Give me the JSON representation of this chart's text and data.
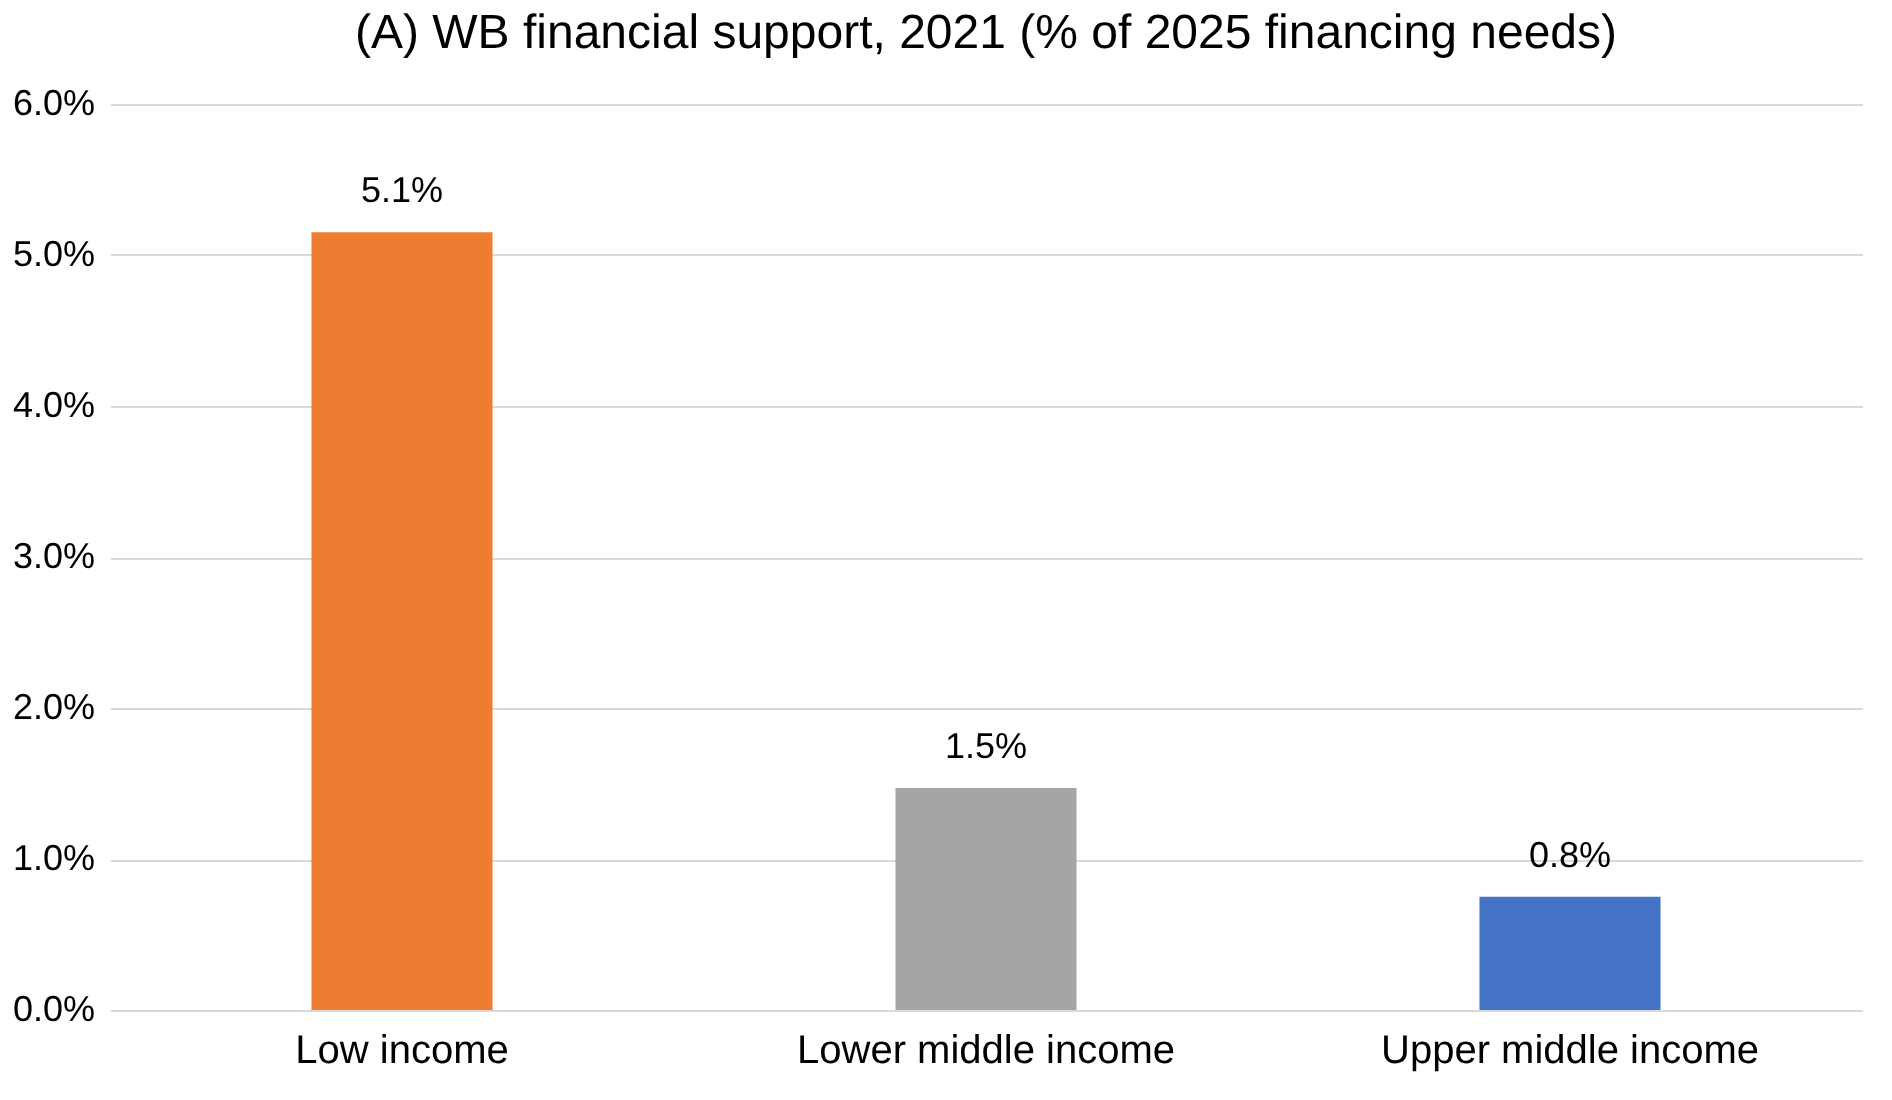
{
  "chart_data": {
    "type": "bar",
    "title": "(A) WB financial support, 2021 (% of 2025 financing needs)",
    "categories": [
      "Low income",
      "Lower middle income",
      "Upper middle income"
    ],
    "values": [
      5.15,
      1.47,
      0.75
    ],
    "value_labels": [
      "5.1%",
      "1.5%",
      "0.8%"
    ],
    "colors": [
      "#ed7d31",
      "#a5a5a5",
      "#4472c4"
    ],
    "ylim": [
      0,
      6
    ],
    "yticks": [
      {
        "value": 0,
        "label": "0.0%"
      },
      {
        "value": 1,
        "label": "1.0%"
      },
      {
        "value": 2,
        "label": "2.0%"
      },
      {
        "value": 3,
        "label": "3.0%"
      },
      {
        "value": 4,
        "label": "4.0%"
      },
      {
        "value": 5,
        "label": "5.0%"
      },
      {
        "value": 6,
        "label": "6.0%"
      }
    ],
    "grid": "y"
  }
}
